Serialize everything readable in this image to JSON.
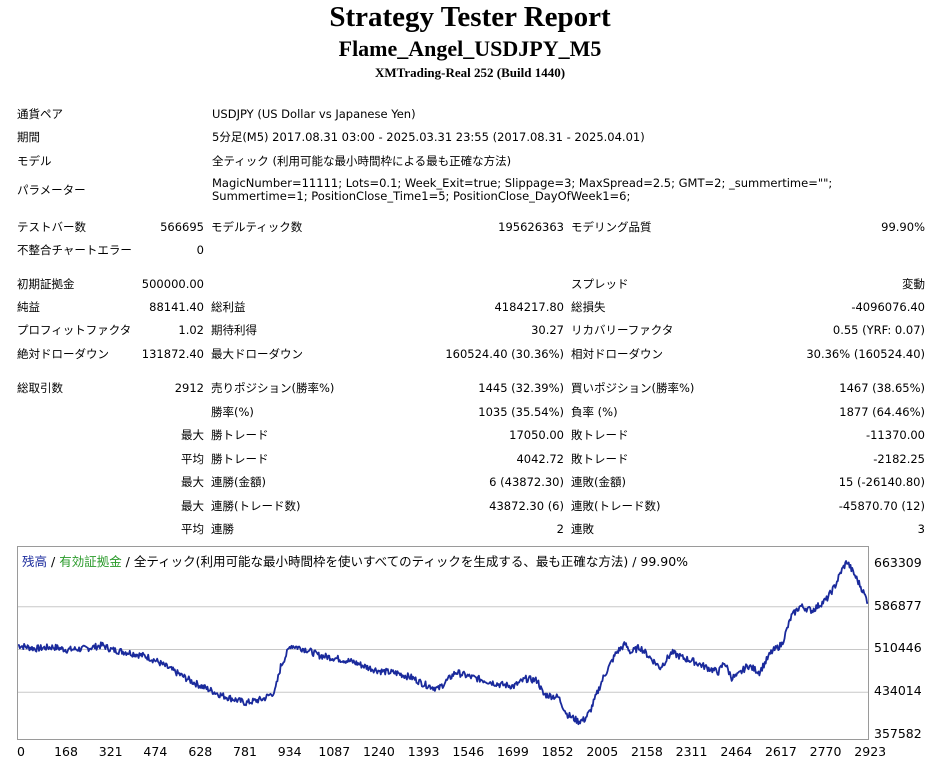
{
  "header": {
    "title": "Strategy Tester Report",
    "subtitle": "Flame_Angel_USDJPY_M5",
    "server": "XMTrading-Real 252 (Build 1440)"
  },
  "settings": {
    "symbol_label": "通貨ペア",
    "symbol_value": "USDJPY (US Dollar vs Japanese Yen)",
    "period_label": "期間",
    "period_value": "5分足(M5) 2017.08.31 03:00 - 2025.03.31 23:55 (2017.08.31 - 2025.04.01)",
    "model_label": "モデル",
    "model_value": "全ティック (利用可能な最小時間枠による最も正確な方法)",
    "params_label": "パラメーター",
    "params_value": "MagicNumber=11111; Lots=0.1; Week_Exit=true; Slippage=3; MaxSpread=2.5; GMT=2; _summertime=\"\"; Summertime=1; PositionClose_Time1=5; PositionClose_DayOfWeek1=6;"
  },
  "stats": {
    "bars_label": "テストバー数",
    "bars_value": "566695",
    "ticks_label": "モデルティック数",
    "ticks_value": "195626363",
    "quality_label": "モデリング品質",
    "quality_value": "99.90%",
    "mismatch_label": "不整合チャートエラー",
    "mismatch_value": "0",
    "deposit_label": "初期証拠金",
    "deposit_value": "500000.00",
    "spread_label": "スプレッド",
    "spread_value": "変動",
    "net_label": "純益",
    "net_value": "88141.40",
    "gross_profit_label": "総利益",
    "gross_profit_value": "4184217.80",
    "gross_loss_label": "総損失",
    "gross_loss_value": "-4096076.40",
    "pf_label": "プロフィットファクタ",
    "pf_value": "1.02",
    "expected_label": "期待利得",
    "expected_value": "30.27",
    "recovery_label": "リカバリーファクタ",
    "recovery_value": "0.55 (YRF: 0.07)",
    "abs_dd_label": "絶対ドローダウン",
    "abs_dd_value": "131872.40",
    "max_dd_label": "最大ドローダウン",
    "max_dd_value": "160524.40 (30.36%)",
    "rel_dd_label": "相対ドローダウン",
    "rel_dd_value": "30.36% (160524.40)",
    "trades_label": "総取引数",
    "trades_value": "2912",
    "short_label": "売りポジション(勝率%)",
    "short_value": "1445 (32.39%)",
    "long_label": "買いポジション(勝率%)",
    "long_value": "1467 (38.65%)",
    "winrate_label": "勝率(%)",
    "winrate_value": "1035 (35.54%)",
    "lossrate_label": "負率 (%)",
    "lossrate_value": "1877 (64.46%)",
    "max_prefix": "最大",
    "avg_prefix": "平均",
    "largest_win_label": "勝トレード",
    "largest_win_value": "17050.00",
    "largest_loss_label": "敗トレード",
    "largest_loss_value": "-11370.00",
    "avg_win_label": "勝トレード",
    "avg_win_value": "4042.72",
    "avg_loss_label": "敗トレード",
    "avg_loss_value": "-2182.25",
    "consec_win_amt_label": "連勝(金額)",
    "consec_win_amt_value": "6 (43872.30)",
    "consec_loss_amt_label": "連敗(金額)",
    "consec_loss_amt_value": "15 (-26140.80)",
    "consec_win_trd_label": "連勝(トレード数)",
    "consec_win_trd_value": "43872.30 (6)",
    "consec_loss_trd_label": "連敗(トレード数)",
    "consec_loss_trd_value": "-45870.70 (12)",
    "avg_consec_win_label": "連勝",
    "avg_consec_win_value": "2",
    "avg_consec_loss_label": "連敗",
    "avg_consec_loss_value": "3"
  },
  "chart_data": {
    "type": "line",
    "legend_balance": "残高",
    "legend_sep": " / ",
    "legend_equity": "有効証拠金",
    "legend_rest": " / 全ティック(利用可能な最小時間枠を使いすべてのティックを生成する、最も正確な方法) / 99.90%",
    "colors": {
      "line": "#1a2a9c",
      "balance": "#1a2a9c",
      "equity": "#2a9a2a",
      "grid": "#c8c8c8"
    },
    "x_ticks": [
      "0",
      "168",
      "321",
      "474",
      "628",
      "781",
      "934",
      "1087",
      "1240",
      "1393",
      "1546",
      "1699",
      "1852",
      "2005",
      "2158",
      "2311",
      "2464",
      "2617",
      "2770",
      "2923"
    ],
    "y_ticks": [
      "663309",
      "586877",
      "510446",
      "434014",
      "357582"
    ],
    "xlim": [
      0,
      2912
    ],
    "ylim": [
      357582,
      663309
    ],
    "series": [
      {
        "values": [
          [
            0,
            518000
          ],
          [
            60,
            512000
          ],
          [
            120,
            515000
          ],
          [
            168,
            510000
          ],
          [
            230,
            512000
          ],
          [
            290,
            518000
          ],
          [
            321,
            510000
          ],
          [
            380,
            505000
          ],
          [
            440,
            498000
          ],
          [
            474,
            490000
          ],
          [
            540,
            470000
          ],
          [
            600,
            452000
          ],
          [
            628,
            445000
          ],
          [
            700,
            428000
          ],
          [
            781,
            415000
          ],
          [
            840,
            422000
          ],
          [
            880,
            435000
          ],
          [
            900,
            480000
          ],
          [
            934,
            518000
          ],
          [
            990,
            510000
          ],
          [
            1030,
            500000
          ],
          [
            1087,
            495000
          ],
          [
            1150,
            488000
          ],
          [
            1200,
            478000
          ],
          [
            1240,
            472000
          ],
          [
            1300,
            468000
          ],
          [
            1350,
            460000
          ],
          [
            1393,
            448000
          ],
          [
            1440,
            440000
          ],
          [
            1470,
            455000
          ],
          [
            1500,
            470000
          ],
          [
            1546,
            462000
          ],
          [
            1600,
            455000
          ],
          [
            1650,
            448000
          ],
          [
            1699,
            445000
          ],
          [
            1740,
            458000
          ],
          [
            1780,
            455000
          ],
          [
            1800,
            430000
          ],
          [
            1852,
            425000
          ],
          [
            1880,
            395000
          ],
          [
            1920,
            382000
          ],
          [
            1940,
            385000
          ],
          [
            1960,
            400000
          ],
          [
            2005,
            460000
          ],
          [
            2050,
            505000
          ],
          [
            2080,
            520000
          ],
          [
            2100,
            505000
          ],
          [
            2130,
            515000
          ],
          [
            2158,
            500000
          ],
          [
            2200,
            478000
          ],
          [
            2240,
            505000
          ],
          [
            2280,
            495000
          ],
          [
            2311,
            490000
          ],
          [
            2360,
            478000
          ],
          [
            2400,
            470000
          ],
          [
            2420,
            488000
          ],
          [
            2445,
            460000
          ],
          [
            2464,
            463000
          ],
          [
            2500,
            482000
          ],
          [
            2540,
            470000
          ],
          [
            2580,
            505000
          ],
          [
            2617,
            520000
          ],
          [
            2650,
            570000
          ],
          [
            2680,
            588000
          ],
          [
            2720,
            580000
          ],
          [
            2770,
            600000
          ],
          [
            2800,
            625000
          ],
          [
            2820,
            650000
          ],
          [
            2840,
            668000
          ],
          [
            2870,
            640000
          ],
          [
            2890,
            620000
          ],
          [
            2912,
            595000
          ]
        ]
      }
    ]
  }
}
